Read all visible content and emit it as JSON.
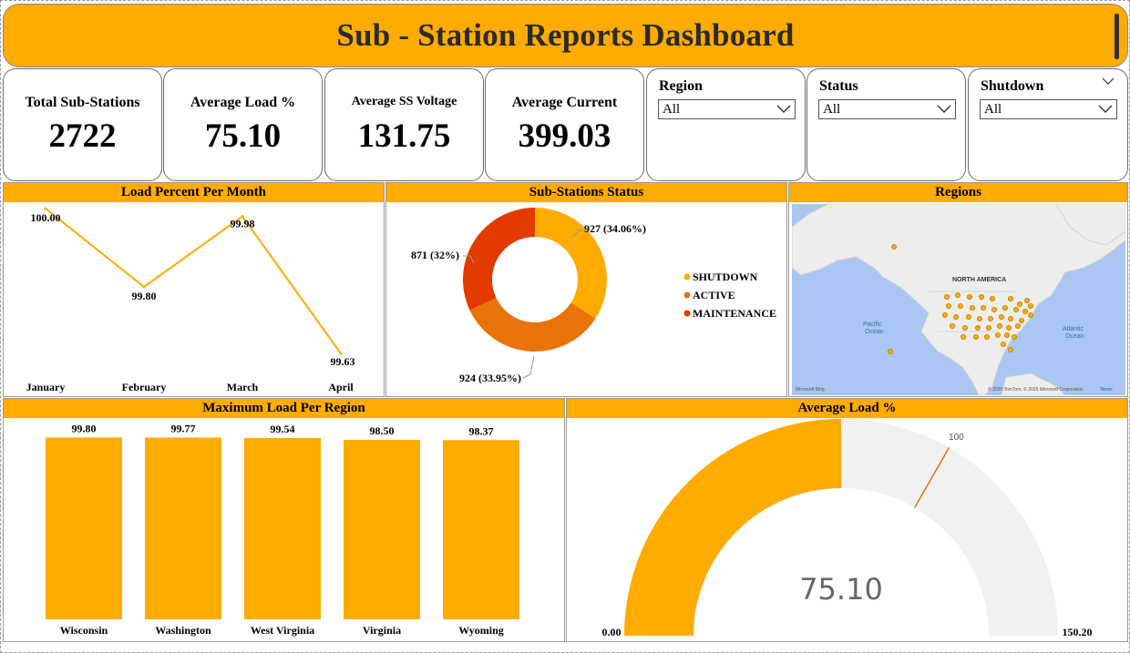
{
  "header": {
    "title": "Sub - Station Reports Dashboard"
  },
  "kpis": [
    {
      "label": "Total Sub-Stations",
      "value": "2722"
    },
    {
      "label": "Average Load %",
      "value": "75.10"
    },
    {
      "label": "Average SS Voltage",
      "value": "131.75"
    },
    {
      "label": "Average Current",
      "value": "399.03"
    }
  ],
  "filters": [
    {
      "label": "Region",
      "selected": "All"
    },
    {
      "label": "Status",
      "selected": "All"
    },
    {
      "label": "Shutdown",
      "selected": "All"
    }
  ],
  "panels": {
    "line": "Load Percent Per Month",
    "donut": "Sub-Stations Status",
    "map": "Regions",
    "bars": "Maximum Load Per Region",
    "gauge": "Average Load %"
  },
  "map": {
    "labels": [
      "NORTH AMERICA",
      "Pacific",
      "Ocean",
      "Atlantic",
      "Ocean"
    ],
    "attribution_left": "Microsoft Bing",
    "attribution_right": "© 2025 TomTom, © 2025 Microsoft Corporation",
    "terms": "Terms"
  },
  "colors": {
    "accent": "#FFAB00",
    "shutdown": "#FFAB00",
    "active": "#E8730A",
    "maintenance": "#E33A00",
    "gauge_bg": "#F1F1F1"
  },
  "chart_data": [
    {
      "type": "line",
      "title": "Load Percent Per Month",
      "categories": [
        "January",
        "February",
        "March",
        "April"
      ],
      "values": [
        100.0,
        99.8,
        99.98,
        99.63
      ],
      "data_labels": [
        "100.00",
        "99.80",
        "99.98",
        "99.63"
      ],
      "ylim": [
        99.6,
        100.0
      ],
      "color": "#FFAB00"
    },
    {
      "type": "pie",
      "title": "Sub-Stations Status",
      "donut": true,
      "slices": [
        {
          "name": "SHUTDOWN",
          "value": 927,
          "label": "927 (34.06%)",
          "color": "#FFAB00"
        },
        {
          "name": "ACTIVE",
          "value": 924,
          "label": "924 (33.95%)",
          "color": "#E8730A"
        },
        {
          "name": "MAINTENANCE",
          "value": 871,
          "label": "871 (32%)",
          "color": "#E33A00"
        }
      ],
      "legend": "right"
    },
    {
      "type": "bar",
      "title": "Maximum Load Per Region",
      "categories": [
        "Wisconsin",
        "Washington",
        "West Virginia",
        "Virginia",
        "Wyoming"
      ],
      "values": [
        99.8,
        99.77,
        99.54,
        98.5,
        98.37
      ],
      "data_labels": [
        "99.80",
        "99.77",
        "99.54",
        "98.50",
        "98.37"
      ],
      "ylim": [
        0,
        105
      ],
      "color": "#FFAB00"
    },
    {
      "type": "gauge",
      "title": "Average Load %",
      "value": 75.1,
      "value_label": "75.10",
      "min": 0,
      "min_label": "0.00",
      "max": 150.2,
      "max_label": "150.20",
      "target": 100,
      "target_label": "100"
    }
  ]
}
